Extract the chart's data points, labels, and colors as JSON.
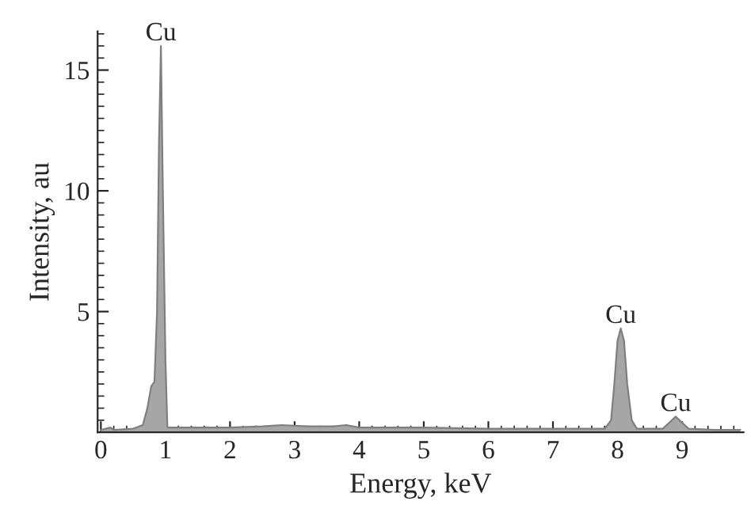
{
  "chart_data": {
    "type": "area",
    "xlabel": "Energy, keV",
    "ylabel": "Intensity, au",
    "xlim": [
      -0.05,
      9.95
    ],
    "ylim": [
      0,
      16.6
    ],
    "xticks": [
      0,
      1,
      2,
      3,
      4,
      5,
      6,
      7,
      8,
      9
    ],
    "yticks": [
      5,
      10,
      15
    ],
    "grid": false,
    "legend": false,
    "series": [
      {
        "color": "#a6a6a6",
        "x": [
          0,
          0.15,
          0.2,
          0.5,
          0.65,
          0.72,
          0.78,
          0.83,
          0.87,
          0.9,
          0.93,
          0.96,
          1.0,
          1.03,
          1.5,
          2.0,
          2.5,
          2.8,
          3.2,
          3.6,
          3.8,
          4.0,
          5.0,
          6.0,
          7.0,
          7.8,
          7.9,
          7.95,
          8.0,
          8.05,
          8.1,
          8.15,
          8.22,
          8.3,
          8.7,
          8.8,
          8.9,
          9.0,
          9.1,
          9.5,
          9.9
        ],
        "values": [
          0.1,
          0.2,
          0.1,
          0.15,
          0.3,
          1.0,
          1.9,
          2.1,
          5,
          12,
          16,
          10,
          3,
          0.2,
          0.2,
          0.2,
          0.25,
          0.3,
          0.25,
          0.25,
          0.3,
          0.2,
          0.2,
          0.15,
          0.15,
          0.15,
          0.5,
          2,
          3.8,
          4.3,
          3.8,
          2,
          0.5,
          0.15,
          0.15,
          0.4,
          0.65,
          0.4,
          0.15,
          0.1,
          0.1
        ]
      }
    ],
    "annotations": [
      {
        "text": "Cu",
        "x": 0.93,
        "y": 16
      },
      {
        "text": "Cu",
        "x": 8.05,
        "y": 4.3
      },
      {
        "text": "Cu",
        "x": 8.9,
        "y": 0.65
      }
    ]
  }
}
